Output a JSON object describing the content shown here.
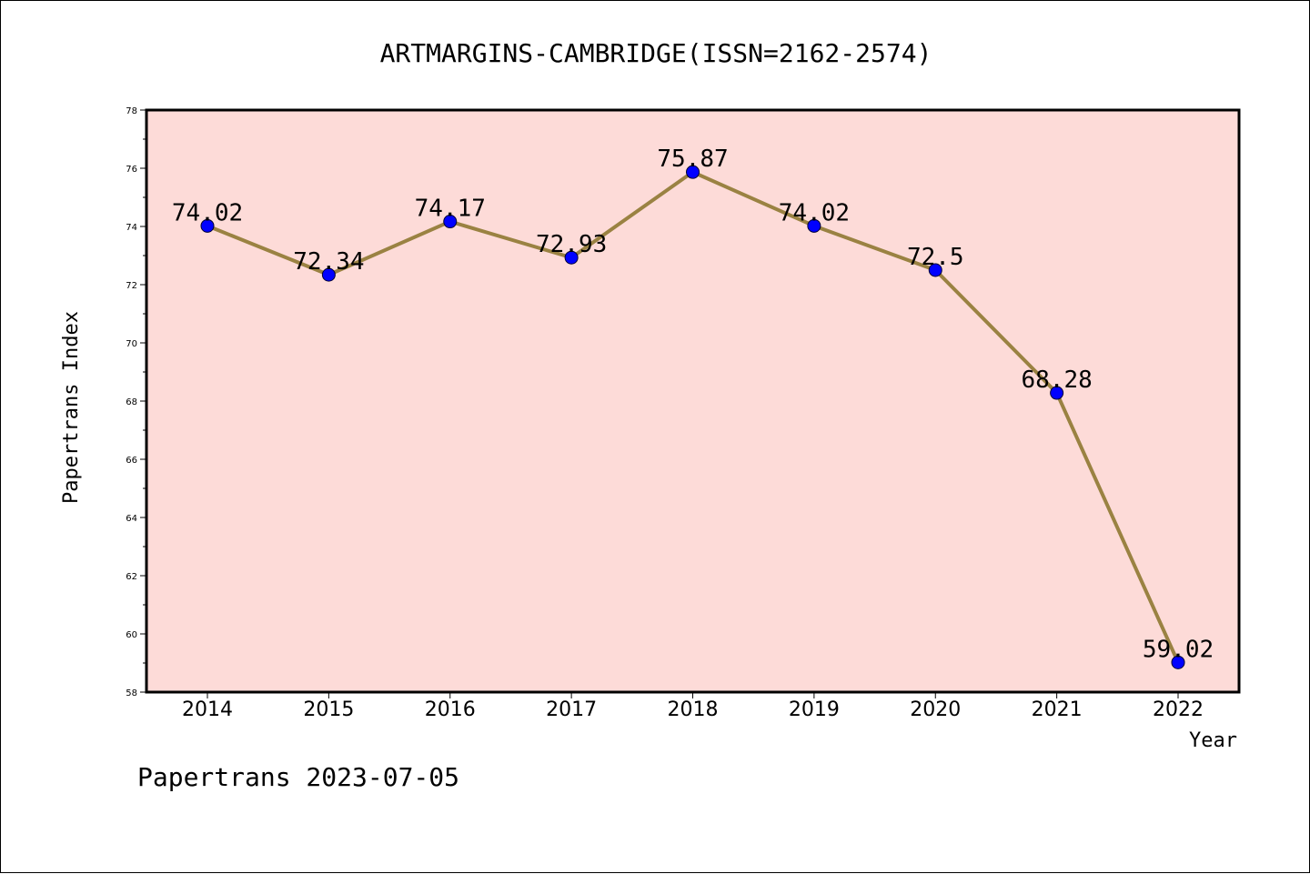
{
  "chart_data": {
    "type": "line",
    "title": "ARTMARGINS-CAMBRIDGE(ISSN=2162-2574)",
    "xlabel": "Year",
    "ylabel": "Papertrans Index",
    "categories": [
      "2014",
      "2015",
      "2016",
      "2017",
      "2018",
      "2019",
      "2020",
      "2021",
      "2022"
    ],
    "values": [
      74.02,
      72.34,
      74.17,
      72.93,
      75.87,
      74.02,
      72.5,
      68.28,
      59.02
    ],
    "data_labels": [
      "74.02",
      "72.34",
      "74.17",
      "72.93",
      "75.87",
      "74.02",
      "72.5",
      "68.28",
      "59.02"
    ],
    "ylim": [
      58,
      78
    ],
    "yticks": [
      "58",
      "60",
      "62",
      "64",
      "66",
      "68",
      "70",
      "72",
      "74",
      "76",
      "78"
    ],
    "grid": false,
    "colors": {
      "plot_background": "#fddbd8",
      "line": "#9a8242",
      "marker": "#0000ff"
    }
  },
  "footer": "Papertrans 2023-07-05"
}
